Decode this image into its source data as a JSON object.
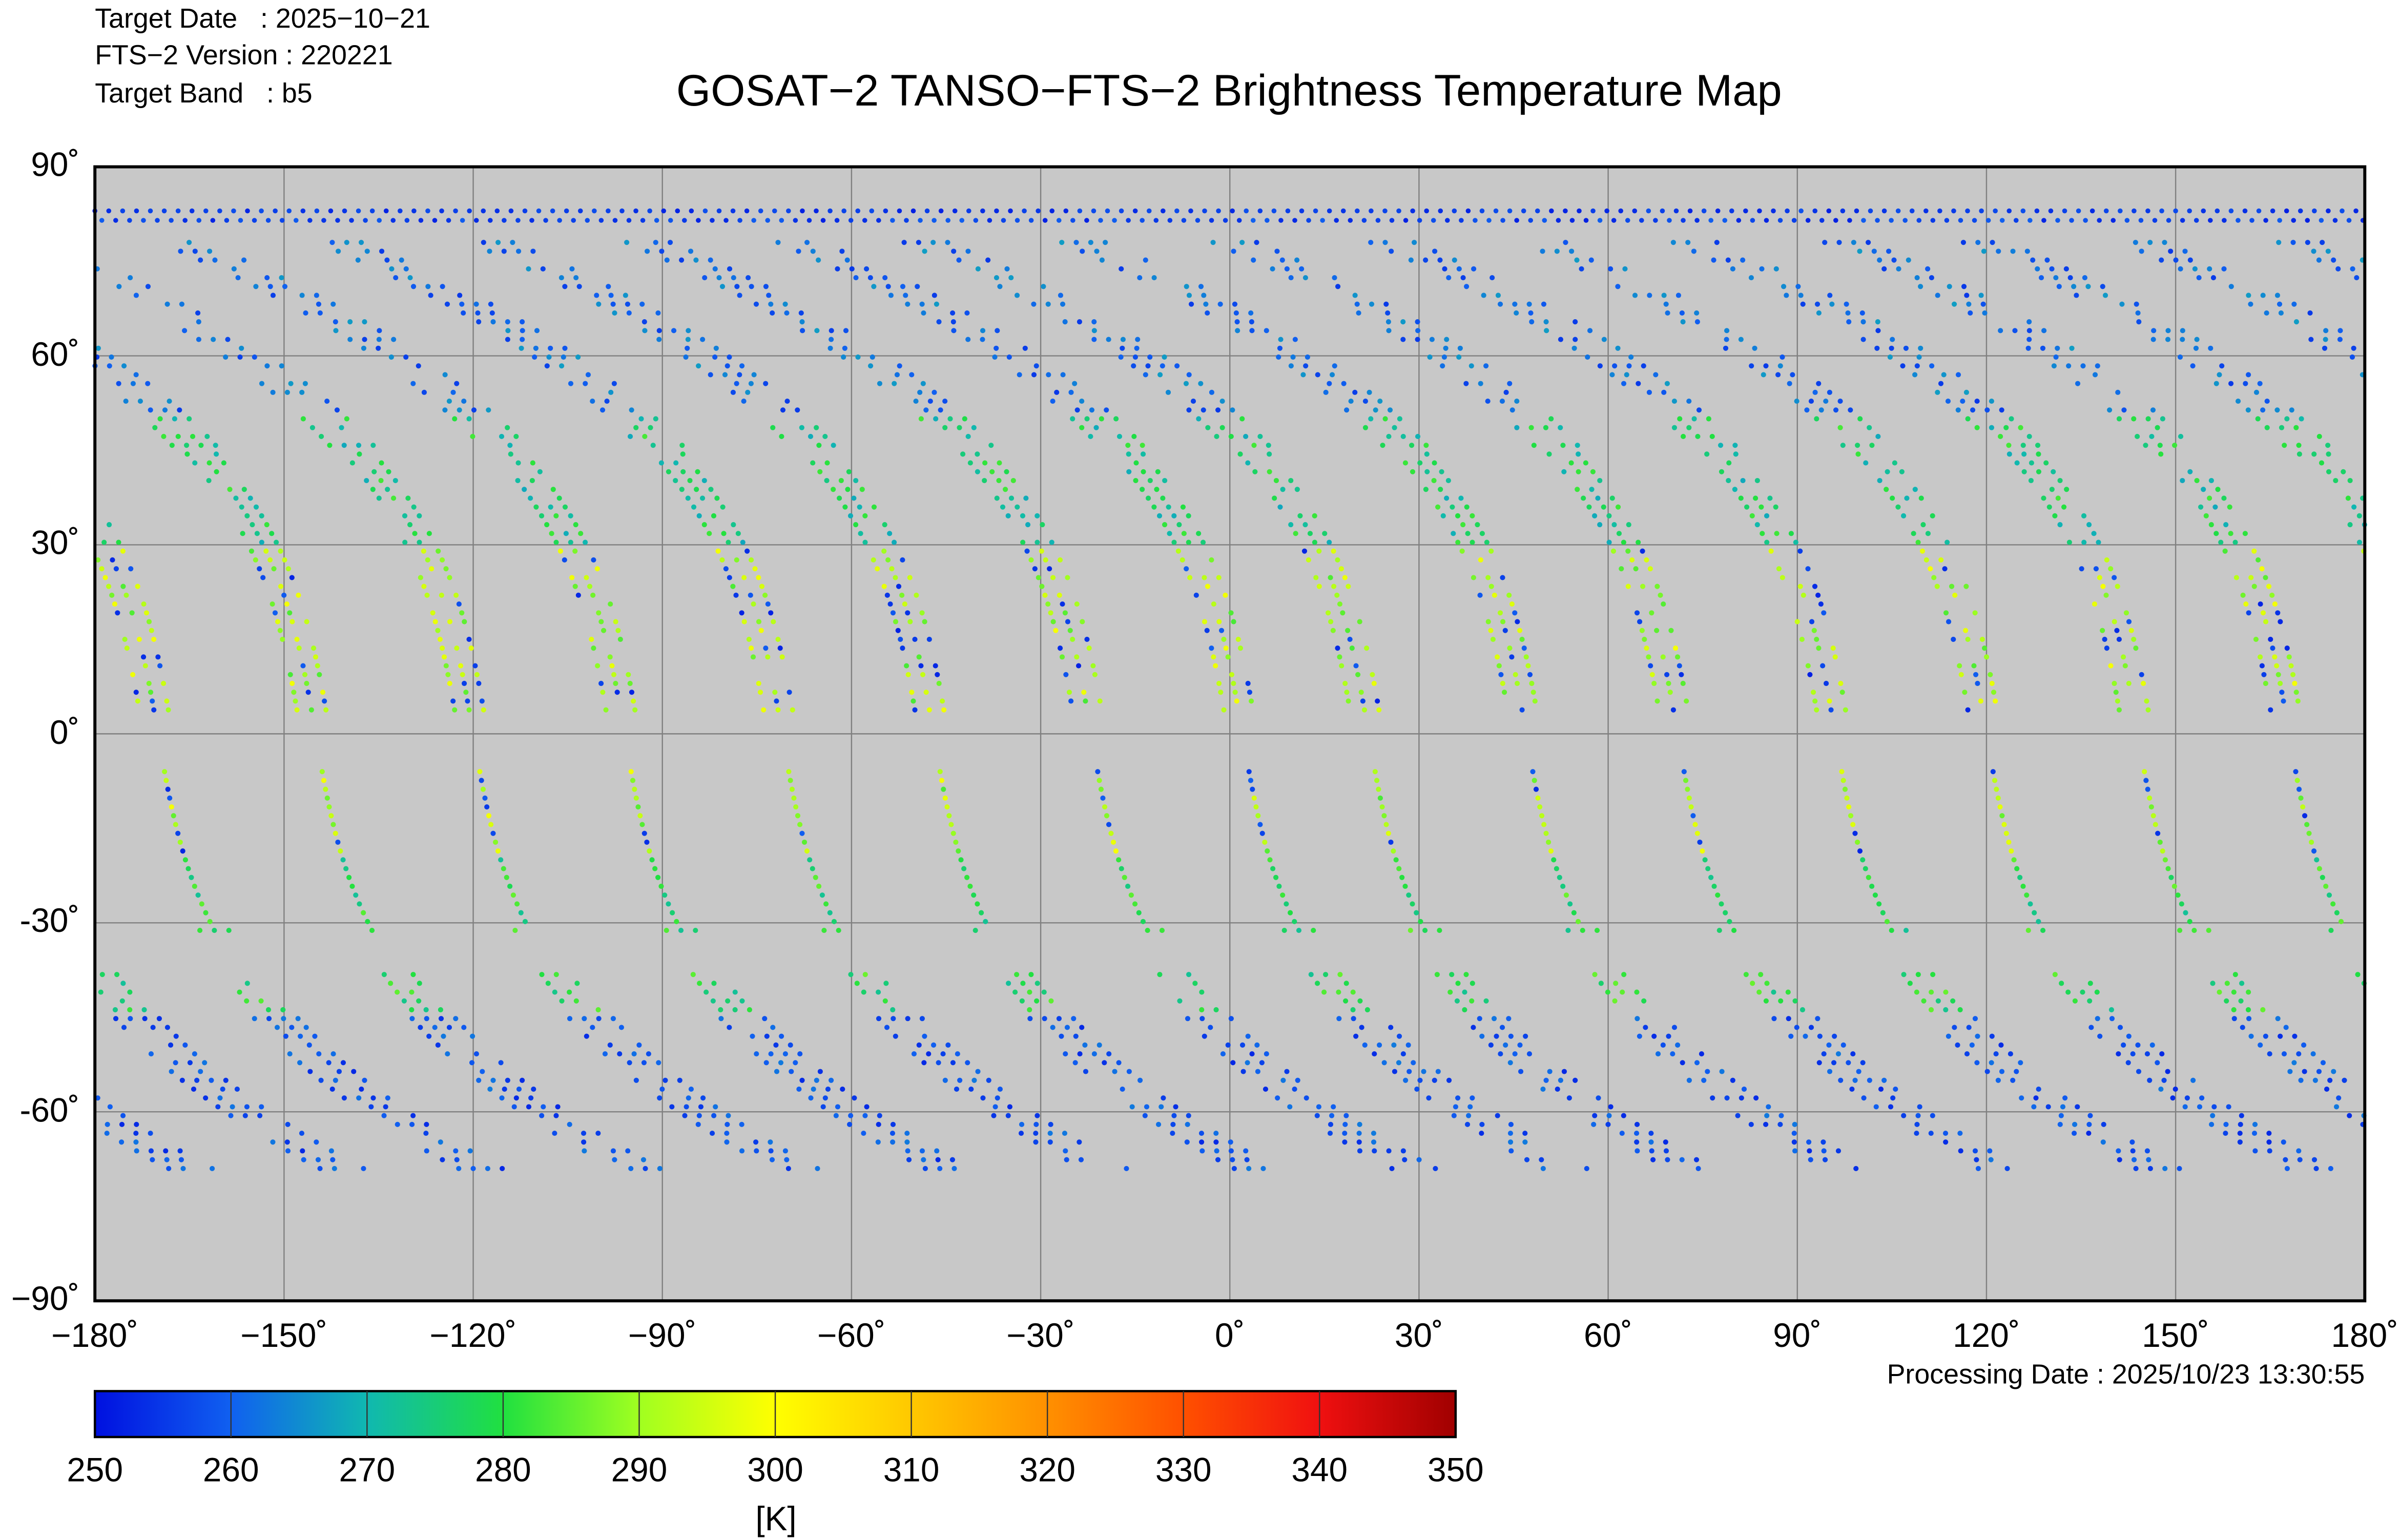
{
  "header": {
    "target_date": "Target Date   : 2025−10−21",
    "version": "FTS−2 Version : 220221",
    "band": "Target Band   : b5"
  },
  "title": "GOSAT−2 TANSO−FTS−2 Brightness Temperature Map",
  "processing_date": "Processing Date : 2025/10/23 13:30:55",
  "chart_data": {
    "type": "scatter",
    "projection": "equirectangular",
    "title": "GOSAT−2 TANSO−FTS−2 Brightness Temperature Map",
    "xlim": [
      -180,
      180
    ],
    "ylim": [
      -90,
      90
    ],
    "grid": true,
    "x_ticks": [
      "−180˚",
      "−150˚",
      "−120˚",
      "−90˚",
      "−60˚",
      "−30˚",
      "0˚",
      "30˚",
      "60˚",
      "90˚",
      "120˚",
      "150˚",
      "180˚"
    ],
    "y_ticks": [
      "90˚",
      "60˚",
      "30˚",
      "0˚",
      "-30˚",
      "-60˚",
      "−90˚"
    ],
    "background": "#c8c8c8",
    "track_equator_longitudes": [
      -170,
      -145,
      -120,
      -96,
      -71,
      -47,
      -22,
      2,
      22,
      47,
      71,
      96,
      120,
      144,
      168
    ],
    "colorbar": {
      "range": [
        250,
        350
      ],
      "ticks": [
        "250",
        "260",
        "270",
        "280",
        "290",
        "300",
        "310",
        "320",
        "330",
        "340",
        "350"
      ],
      "unit": "[K]",
      "colors": [
        "#0010e0",
        "#1060f0",
        "#10b8b0",
        "#20e040",
        "#a0ff20",
        "#ffff00",
        "#ffc800",
        "#ff9000",
        "#ff5000",
        "#f01010",
        "#a00000"
      ]
    }
  }
}
